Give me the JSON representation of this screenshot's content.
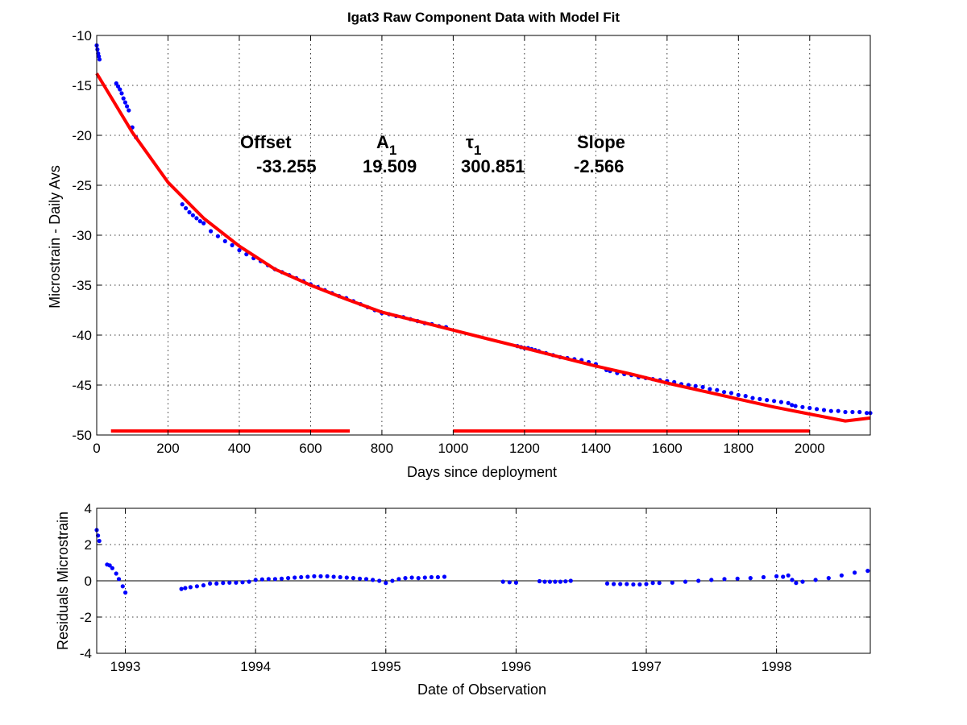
{
  "chart_data": [
    {
      "type": "scatter",
      "title": "Igat3  Raw Component Data with Model Fit",
      "xlabel": "Days since deployment",
      "ylabel": "Microstrain - Daily Avs",
      "xlim": [
        0,
        2170
      ],
      "ylim": [
        -50,
        -10
      ],
      "xticks": [
        0,
        200,
        400,
        600,
        800,
        1000,
        1200,
        1400,
        1600,
        1800,
        2000
      ],
      "yticks": [
        -10,
        -15,
        -20,
        -25,
        -30,
        -35,
        -40,
        -45,
        -50
      ],
      "grid": true,
      "series": [
        {
          "color": "#0000ff",
          "marker": "dot",
          "x": [
            0,
            2,
            4,
            6,
            8,
            55,
            60,
            65,
            70,
            75,
            80,
            85,
            90,
            100,
            110,
            240,
            250,
            260,
            270,
            280,
            290,
            300,
            320,
            340,
            360,
            380,
            400,
            420,
            440,
            460,
            480,
            500,
            520,
            540,
            560,
            580,
            600,
            620,
            640,
            660,
            680,
            700,
            720,
            740,
            760,
            780,
            800,
            820,
            840,
            860,
            880,
            900,
            920,
            940,
            960,
            980,
            1180,
            1190,
            1200,
            1210,
            1220,
            1230,
            1240,
            1260,
            1280,
            1300,
            1320,
            1340,
            1360,
            1380,
            1400,
            1430,
            1440,
            1460,
            1480,
            1500,
            1520,
            1540,
            1560,
            1580,
            1600,
            1620,
            1640,
            1660,
            1680,
            1700,
            1720,
            1740,
            1760,
            1780,
            1800,
            1820,
            1840,
            1860,
            1880,
            1900,
            1920,
            1940,
            1950,
            1960,
            1980,
            2000,
            2020,
            2040,
            2060,
            2080,
            2100,
            2120,
            2140,
            2160,
            2170
          ],
          "y": [
            -11.0,
            -11.4,
            -11.8,
            -12.1,
            -12.4,
            -14.8,
            -15.1,
            -15.4,
            -15.8,
            -16.3,
            -16.7,
            -17.1,
            -17.5,
            -19.2,
            -20.2,
            -26.9,
            -27.3,
            -27.7,
            -28.0,
            -28.3,
            -28.6,
            -28.8,
            -29.6,
            -30.1,
            -30.6,
            -31.0,
            -31.5,
            -31.9,
            -32.3,
            -32.6,
            -33.0,
            -33.4,
            -33.7,
            -34.0,
            -34.3,
            -34.6,
            -34.9,
            -35.2,
            -35.5,
            -35.8,
            -36.1,
            -36.3,
            -36.6,
            -36.9,
            -37.2,
            -37.5,
            -37.8,
            -37.9,
            -38.1,
            -38.2,
            -38.4,
            -38.6,
            -38.8,
            -38.9,
            -39.1,
            -39.2,
            -41.1,
            -41.2,
            -41.3,
            -41.3,
            -41.4,
            -41.5,
            -41.6,
            -41.8,
            -42.0,
            -42.2,
            -42.3,
            -42.4,
            -42.5,
            -42.7,
            -42.9,
            -43.5,
            -43.6,
            -43.8,
            -43.9,
            -44.0,
            -44.2,
            -44.3,
            -44.4,
            -44.5,
            -44.6,
            -44.7,
            -44.9,
            -45.0,
            -45.1,
            -45.2,
            -45.4,
            -45.5,
            -45.7,
            -45.8,
            -46.0,
            -46.1,
            -46.3,
            -46.4,
            -46.5,
            -46.6,
            -46.7,
            -46.8,
            -47.0,
            -47.1,
            -47.2,
            -47.3,
            -47.4,
            -47.5,
            -47.6,
            -47.6,
            -47.7,
            -47.7,
            -47.7,
            -47.8,
            -47.8
          ]
        },
        {
          "color": "#ff0000",
          "marker": "line",
          "x": [
            0,
            100,
            200,
            300,
            400,
            500,
            600,
            700,
            800,
            900,
            1000,
            1100,
            1200,
            1300,
            1400,
            1500,
            1600,
            1700,
            1800,
            1900,
            2000,
            2100,
            2170
          ],
          "y": [
            -13.8,
            -19.7,
            -24.7,
            -28.3,
            -31.1,
            -33.4,
            -35.0,
            -36.4,
            -37.7,
            -38.6,
            -39.5,
            -40.4,
            -41.3,
            -42.2,
            -43.1,
            -43.9,
            -44.8,
            -45.6,
            -46.4,
            -47.2,
            -47.9,
            -48.6,
            -48.3
          ]
        },
        {
          "color": "#ff0000",
          "marker": "line",
          "x": [
            40,
            710
          ],
          "y": [
            -49.6,
            -49.6
          ]
        },
        {
          "color": "#ff0000",
          "marker": "line",
          "x": [
            1000,
            2000
          ],
          "y": [
            -49.6,
            -49.6
          ]
        }
      ],
      "annotations": [
        {
          "label": "Offset",
          "value": "-33.255"
        },
        {
          "label": "A",
          "sub": "1",
          "value": "19.509"
        },
        {
          "label": "τ",
          "sub": "1",
          "value": "300.851"
        },
        {
          "label": "Slope",
          "value": "-2.566"
        }
      ]
    },
    {
      "type": "scatter",
      "xlabel": "Date of Observation",
      "ylabel": "Residuals Microstrain",
      "xlim": [
        1992.78,
        1998.72
      ],
      "ylim": [
        -4,
        4
      ],
      "xticks": [
        1993,
        1994,
        1995,
        1996,
        1997,
        1998
      ],
      "yticks": [
        4,
        2,
        0,
        -2,
        -4
      ],
      "grid": true,
      "zero_line": true,
      "series": [
        {
          "color": "#0000ff",
          "marker": "dot",
          "x": [
            1992.78,
            1992.79,
            1992.8,
            1992.86,
            1992.88,
            1992.9,
            1992.93,
            1992.95,
            1992.98,
            1993.0,
            1993.43,
            1993.46,
            1993.5,
            1993.55,
            1993.6,
            1993.65,
            1993.7,
            1993.75,
            1993.8,
            1993.85,
            1993.9,
            1993.95,
            1994.0,
            1994.05,
            1994.1,
            1994.15,
            1994.2,
            1994.25,
            1994.3,
            1994.35,
            1994.4,
            1994.45,
            1994.5,
            1994.55,
            1994.6,
            1994.65,
            1994.7,
            1994.75,
            1994.8,
            1994.85,
            1994.9,
            1994.95,
            1995.0,
            1995.05,
            1995.1,
            1995.15,
            1995.2,
            1995.25,
            1995.3,
            1995.35,
            1995.4,
            1995.45,
            1995.9,
            1995.95,
            1996.0,
            1996.18,
            1996.22,
            1996.26,
            1996.3,
            1996.34,
            1996.38,
            1996.42,
            1996.7,
            1996.75,
            1996.8,
            1996.85,
            1996.9,
            1996.95,
            1997.0,
            1997.05,
            1997.1,
            1997.2,
            1997.3,
            1997.4,
            1997.5,
            1997.6,
            1997.7,
            1997.8,
            1997.9,
            1998.0,
            1998.05,
            1998.09,
            1998.12,
            1998.15,
            1998.2,
            1998.3,
            1998.4,
            1998.5,
            1998.6,
            1998.7
          ],
          "y": [
            2.8,
            2.5,
            2.2,
            0.9,
            0.85,
            0.7,
            0.4,
            0.1,
            -0.3,
            -0.65,
            -0.45,
            -0.4,
            -0.35,
            -0.3,
            -0.25,
            -0.15,
            -0.15,
            -0.12,
            -0.1,
            -0.1,
            -0.08,
            -0.05,
            0.05,
            0.08,
            0.1,
            0.1,
            0.12,
            0.15,
            0.18,
            0.2,
            0.22,
            0.25,
            0.25,
            0.25,
            0.22,
            0.2,
            0.18,
            0.15,
            0.12,
            0.1,
            0.05,
            0.0,
            -0.12,
            0.0,
            0.1,
            0.15,
            0.18,
            0.15,
            0.18,
            0.2,
            0.2,
            0.22,
            -0.05,
            -0.08,
            -0.1,
            -0.02,
            -0.05,
            -0.05,
            -0.05,
            -0.05,
            -0.03,
            0.0,
            -0.15,
            -0.18,
            -0.18,
            -0.18,
            -0.2,
            -0.2,
            -0.18,
            -0.12,
            -0.12,
            -0.1,
            -0.05,
            0.0,
            0.05,
            0.1,
            0.12,
            0.15,
            0.2,
            0.25,
            0.22,
            0.3,
            0.05,
            -0.12,
            -0.05,
            0.05,
            0.15,
            0.3,
            0.45,
            0.55
          ]
        }
      ]
    }
  ]
}
